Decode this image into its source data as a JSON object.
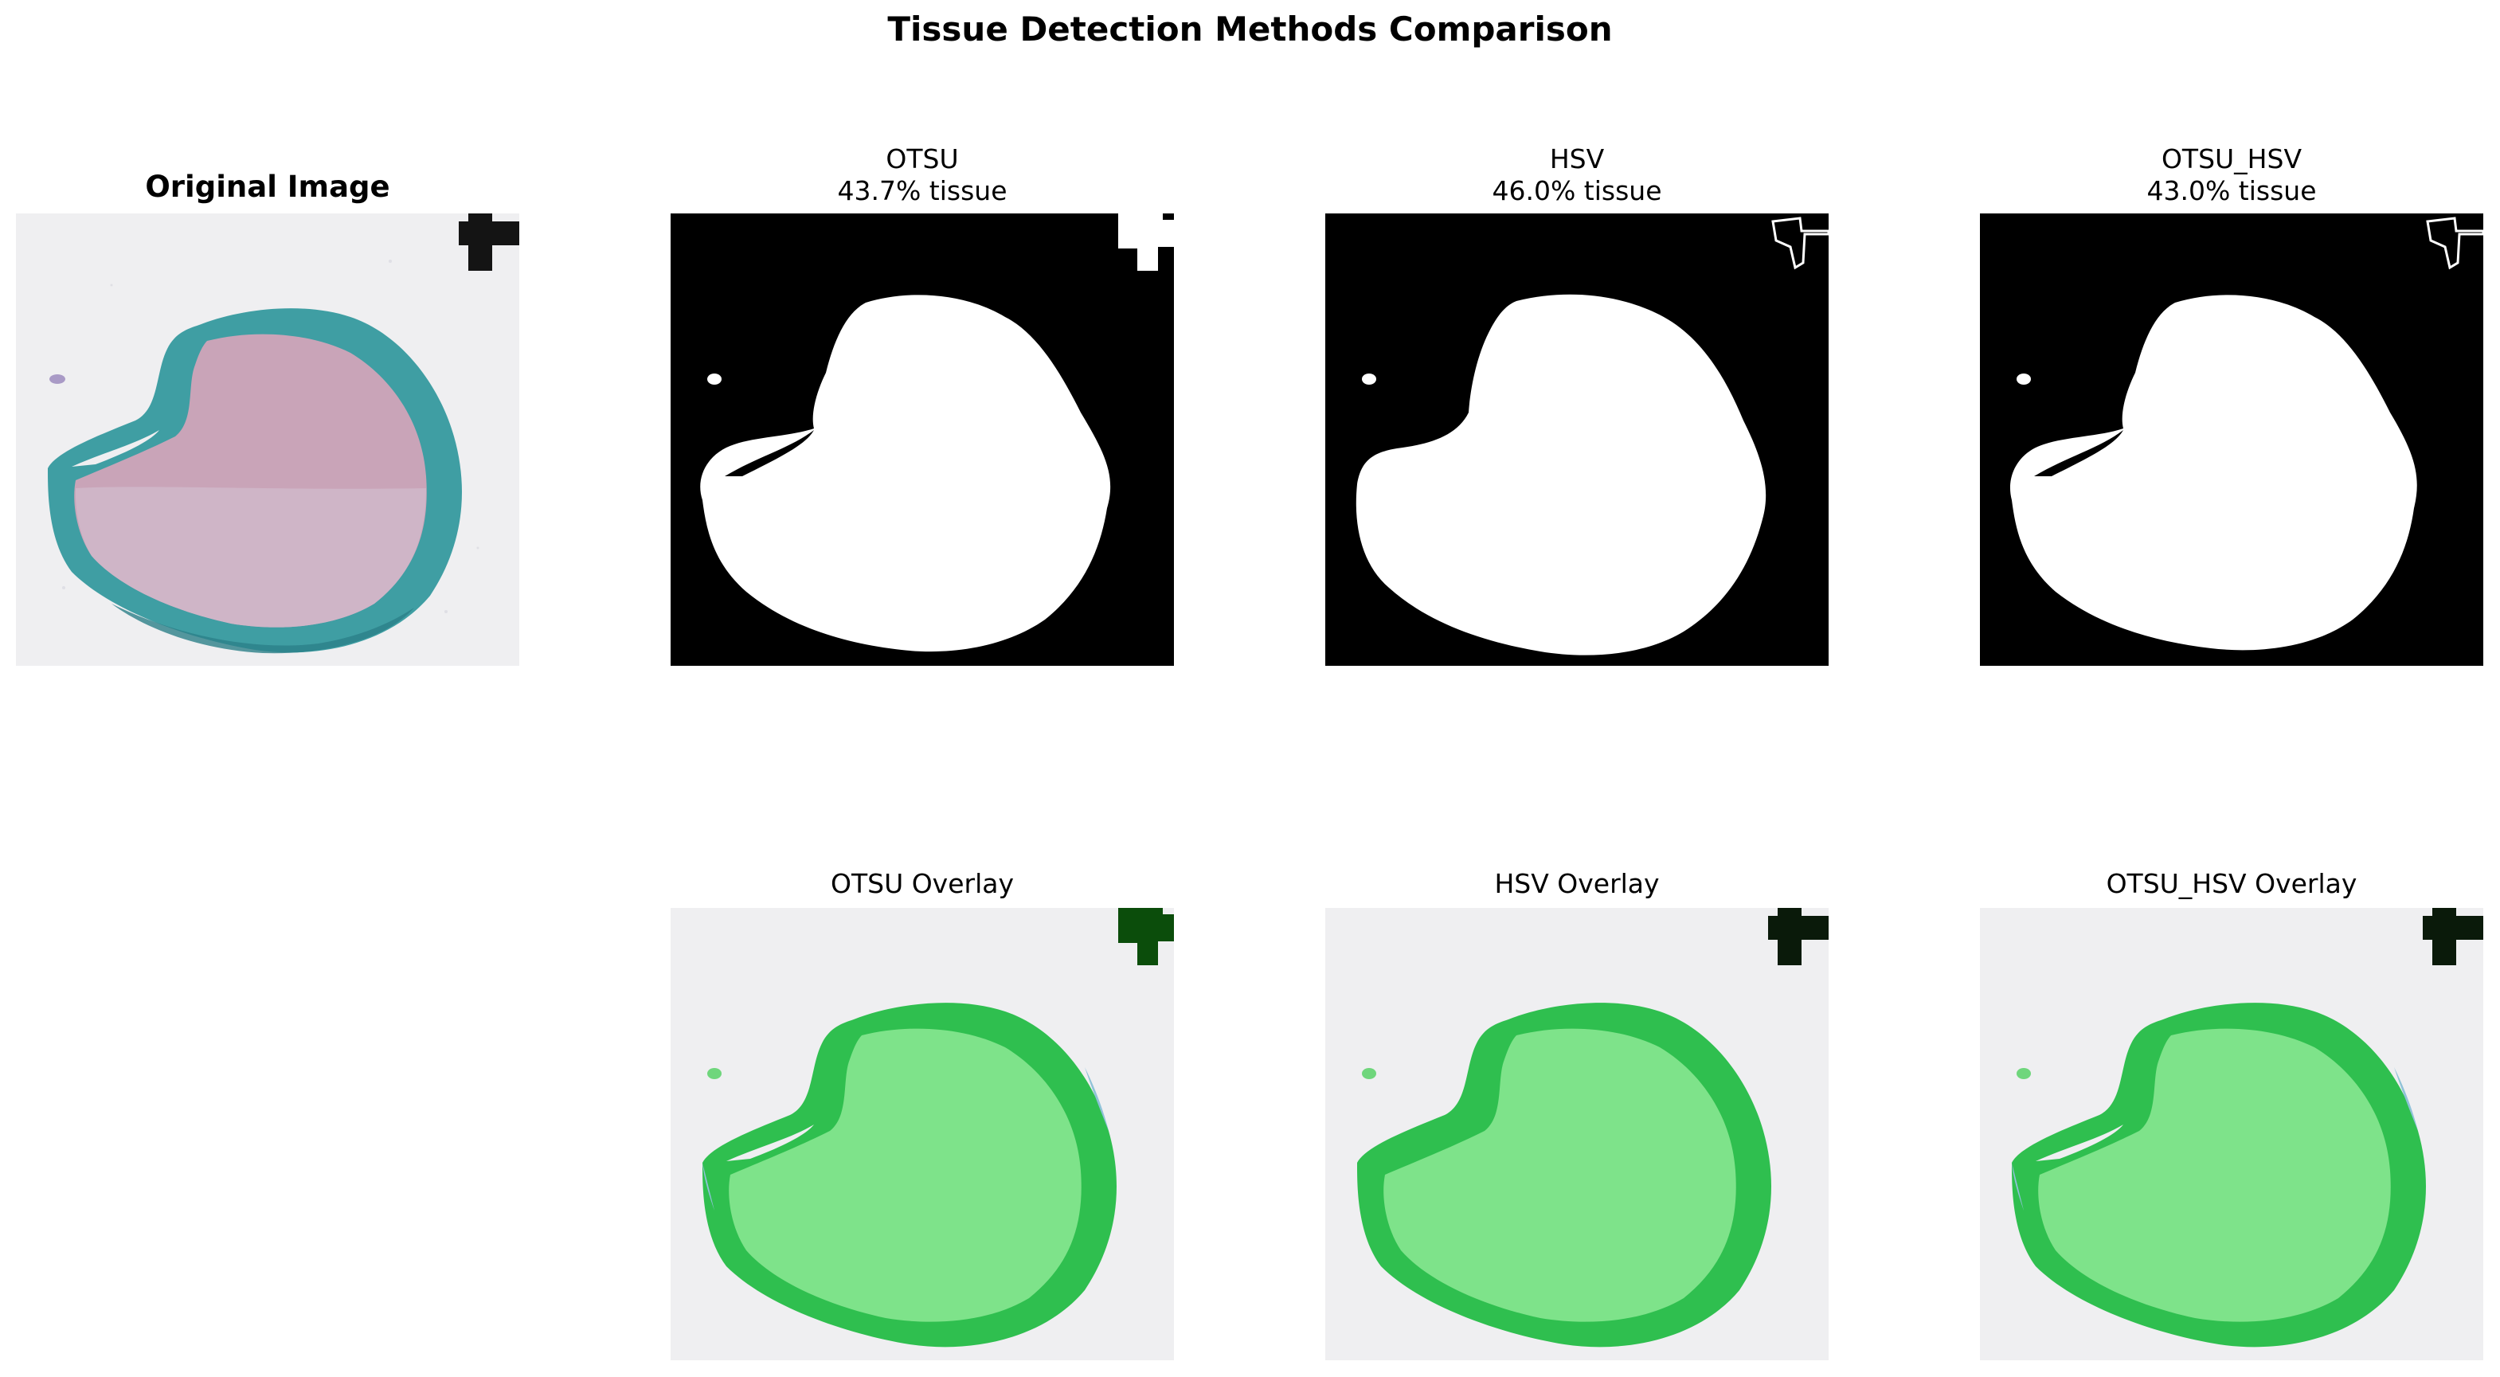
{
  "figure": {
    "title": "Tissue Detection Methods Comparison"
  },
  "top_row": [
    {
      "name": "original",
      "title_lines": [
        "Original Image"
      ],
      "type": "image"
    },
    {
      "name": "otsu",
      "title_lines": [
        "OTSU",
        "43.7% tissue"
      ],
      "tissue_percent": 43.7,
      "type": "mask"
    },
    {
      "name": "hsv",
      "title_lines": [
        "HSV",
        "46.0% tissue"
      ],
      "tissue_percent": 46.0,
      "type": "mask"
    },
    {
      "name": "otsu-hsv",
      "title_lines": [
        "OTSU_HSV",
        "43.0% tissue"
      ],
      "tissue_percent": 43.0,
      "type": "mask"
    }
  ],
  "bottom_row": [
    {
      "name": "otsu-overlay",
      "title": "OTSU Overlay"
    },
    {
      "name": "hsv-overlay",
      "title": "HSV Overlay"
    },
    {
      "name": "otsu-hsv-overlay",
      "title": "OTSU_HSV Overlay"
    }
  ],
  "colors": {
    "background": "#ffffff",
    "slide_background": "#efeff1",
    "tissue_pink": "#c9a4b8",
    "stain_teal": "#3a9aa0",
    "mask_black": "#000000",
    "mask_white": "#ffffff",
    "overlay_green": "#3ecf5c",
    "overlay_green_light": "#7ee38a",
    "marker_dark": "#0a1a0a"
  }
}
